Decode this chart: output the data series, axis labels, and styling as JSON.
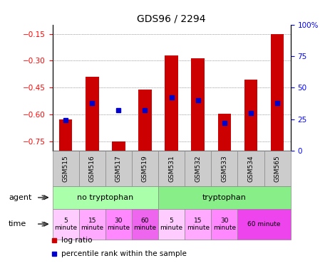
{
  "title": "GDS96 / 2294",
  "samples": [
    "GSM515",
    "GSM516",
    "GSM517",
    "GSM519",
    "GSM531",
    "GSM532",
    "GSM533",
    "GSM534",
    "GSM565"
  ],
  "log_ratios": [
    -0.625,
    -0.39,
    -0.75,
    -0.46,
    -0.27,
    -0.285,
    -0.595,
    -0.405,
    -0.15
  ],
  "percentile_ranks": [
    24,
    38,
    32,
    32,
    42,
    40,
    22,
    30,
    38
  ],
  "ylim_left": [
    -0.8,
    -0.1
  ],
  "yticks_left": [
    -0.75,
    -0.6,
    -0.45,
    -0.3,
    -0.15
  ],
  "yticks_right": [
    0,
    25,
    50,
    75,
    100
  ],
  "bar_color": "#cc0000",
  "percentile_color": "#0000cc",
  "agent_regions": [
    {
      "label": "no tryptophan",
      "start": 0,
      "end": 3,
      "color": "#aaffaa"
    },
    {
      "label": "tryptophan",
      "start": 4,
      "end": 8,
      "color": "#88ee88"
    }
  ],
  "time_cells": [
    {
      "col": 0,
      "span": 1,
      "label": "5\nminute",
      "color": "#ffccff"
    },
    {
      "col": 1,
      "span": 1,
      "label": "15\nminute",
      "color": "#ffaaff"
    },
    {
      "col": 2,
      "span": 1,
      "label": "30\nminute",
      "color": "#ff88ff"
    },
    {
      "col": 3,
      "span": 1,
      "label": "60\nminute",
      "color": "#ee66ee"
    },
    {
      "col": 4,
      "span": 1,
      "label": "5\nminute",
      "color": "#ffccff"
    },
    {
      "col": 5,
      "span": 1,
      "label": "15\nminute",
      "color": "#ffaaff"
    },
    {
      "col": 6,
      "span": 1,
      "label": "30\nminute",
      "color": "#ff88ff"
    },
    {
      "col": 7,
      "span": 2,
      "label": "60 minute",
      "color": "#ee44ee"
    }
  ],
  "sample_box_color": "#cccccc",
  "sample_box_edge": "#888888",
  "grid_linestyle": "dotted",
  "grid_color": "#555555"
}
